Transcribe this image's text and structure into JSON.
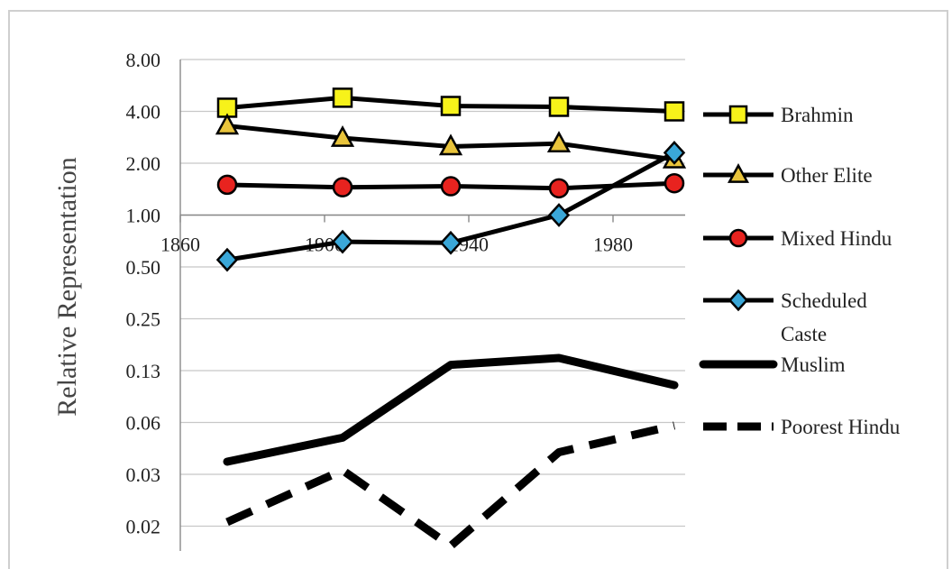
{
  "chart_data": {
    "type": "line",
    "ylabel": "Relative Representation",
    "y_scale": "log2",
    "grid": "horizontal",
    "legend_position": "right",
    "x_ticks": [
      "1860",
      "1900",
      "1940",
      "1980"
    ],
    "y_ticks": [
      {
        "value": 8,
        "label": "8.00"
      },
      {
        "value": 4,
        "label": "4.00"
      },
      {
        "value": 2,
        "label": "2.00"
      },
      {
        "value": 1,
        "label": "1.00"
      },
      {
        "value": 0.5,
        "label": "0.50"
      },
      {
        "value": 0.25,
        "label": "0.25"
      },
      {
        "value": 0.125,
        "label": "0.13"
      },
      {
        "value": 0.0625,
        "label": "0.06"
      },
      {
        "value": 0.03125,
        "label": "0.03"
      },
      {
        "value": 0.015625,
        "label": "0.02"
      }
    ],
    "x": [
      1873,
      1905,
      1935,
      1965,
      1997
    ],
    "series": [
      {
        "name": "Brahmin",
        "marker": "square",
        "color": "#f7f21a",
        "values": [
          4.2,
          4.8,
          4.3,
          4.25,
          4.0
        ]
      },
      {
        "name": "Other Elite",
        "marker": "triangle",
        "color": "#e9c43b",
        "values": [
          3.3,
          2.8,
          2.5,
          2.6,
          2.1
        ]
      },
      {
        "name": "Mixed Hindu",
        "marker": "circle",
        "color": "#e8231f",
        "values": [
          1.5,
          1.45,
          1.47,
          1.43,
          1.53
        ]
      },
      {
        "name": "Scheduled Caste",
        "marker": "diamond",
        "color": "#3aa7d8",
        "values": [
          0.55,
          0.7,
          0.69,
          1.0,
          2.3
        ]
      },
      {
        "name": "Muslim",
        "marker": "none",
        "line": "thick",
        "values": [
          0.037,
          0.051,
          0.135,
          0.148,
          0.103
        ]
      },
      {
        "name": "Poorest Hindu",
        "marker": "none",
        "line": "dashed",
        "values": [
          0.0165,
          0.033,
          0.012,
          0.042,
          0.06
        ]
      }
    ],
    "legend_labels": [
      [
        "Brahmin"
      ],
      [
        "Other Elite"
      ],
      [
        "Mixed Hindu"
      ],
      [
        "Scheduled",
        "Caste"
      ],
      [
        "Muslim"
      ],
      [
        "Poorest Hindu"
      ]
    ]
  }
}
